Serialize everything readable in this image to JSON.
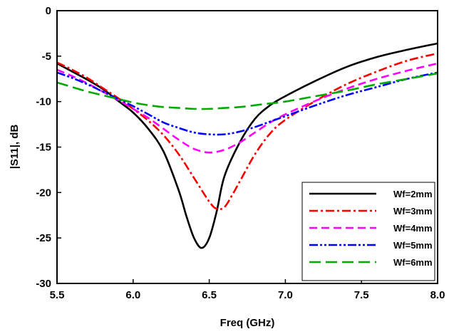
{
  "chart_data": {
    "type": "line",
    "title": "",
    "xlabel": "Freq (GHz)",
    "ylabel": "|S11|, dB",
    "xlim": [
      5.5,
      8.0
    ],
    "ylim": [
      -30,
      0
    ],
    "xticks": [
      5.5,
      6.0,
      6.5,
      7.0,
      7.5,
      8.0
    ],
    "xtick_labels": [
      "5.5",
      "6.0",
      "6.5",
      "7.0",
      "7.5",
      "8.0"
    ],
    "yticks": [
      0,
      -5,
      -10,
      -15,
      -20,
      -25,
      -30
    ],
    "ytick_labels": [
      "0",
      "-5",
      "-10",
      "-15",
      "-20",
      "-25",
      "-30"
    ],
    "grid": false,
    "legend_position": "bottom-right",
    "series": [
      {
        "name": "Wf=2mm",
        "color": "#000000",
        "dash": "solid",
        "x": [
          5.5,
          5.6,
          5.7,
          5.8,
          5.9,
          6.0,
          6.1,
          6.2,
          6.3,
          6.35,
          6.4,
          6.45,
          6.5,
          6.55,
          6.6,
          6.7,
          6.8,
          6.9,
          7.0,
          7.2,
          7.4,
          7.6,
          7.8,
          8.0
        ],
        "y": [
          -5.8,
          -6.7,
          -7.6,
          -8.6,
          -9.9,
          -11.2,
          -13.0,
          -15.5,
          -19.8,
          -22.6,
          -25.0,
          -26.1,
          -25.0,
          -22.0,
          -18.2,
          -14.5,
          -11.9,
          -10.4,
          -9.4,
          -7.7,
          -6.2,
          -5.1,
          -4.3,
          -3.6
        ]
      },
      {
        "name": "Wf=3mm",
        "color": "#ff0000",
        "dash": "dashdot",
        "x": [
          5.5,
          5.6,
          5.7,
          5.8,
          5.9,
          6.0,
          6.1,
          6.2,
          6.3,
          6.4,
          6.5,
          6.55,
          6.6,
          6.65,
          6.7,
          6.8,
          6.9,
          7.0,
          7.2,
          7.4,
          7.6,
          7.8,
          8.0
        ],
        "y": [
          -5.7,
          -6.5,
          -7.4,
          -8.5,
          -9.6,
          -10.8,
          -12.1,
          -13.7,
          -15.8,
          -18.4,
          -21.0,
          -21.8,
          -21.6,
          -20.3,
          -18.8,
          -15.8,
          -13.5,
          -12.0,
          -9.9,
          -8.1,
          -6.7,
          -5.5,
          -4.7
        ]
      },
      {
        "name": "Wf=4mm",
        "color": "#ff00ff",
        "dash": "dash",
        "x": [
          5.5,
          5.6,
          5.7,
          5.8,
          5.9,
          6.0,
          6.1,
          6.2,
          6.3,
          6.4,
          6.5,
          6.6,
          6.7,
          6.8,
          6.9,
          7.0,
          7.2,
          7.4,
          7.6,
          7.8,
          8.0
        ],
        "y": [
          -6.5,
          -7.2,
          -8.0,
          -8.9,
          -9.8,
          -10.8,
          -11.8,
          -13.0,
          -14.2,
          -15.2,
          -15.6,
          -15.3,
          -14.5,
          -13.4,
          -12.3,
          -11.4,
          -9.9,
          -8.6,
          -7.5,
          -6.6,
          -5.8
        ]
      },
      {
        "name": "Wf=5mm",
        "color": "#0000ff",
        "dash": "dashdotdot",
        "x": [
          5.5,
          5.6,
          5.7,
          5.8,
          5.9,
          6.0,
          6.1,
          6.2,
          6.3,
          6.4,
          6.5,
          6.6,
          6.7,
          6.8,
          6.9,
          7.0,
          7.2,
          7.4,
          7.6,
          7.8,
          8.0
        ],
        "y": [
          -6.8,
          -7.4,
          -8.1,
          -8.9,
          -9.7,
          -10.5,
          -11.4,
          -12.3,
          -12.9,
          -13.4,
          -13.6,
          -13.6,
          -13.3,
          -12.8,
          -12.2,
          -11.6,
          -10.4,
          -9.3,
          -8.4,
          -7.5,
          -6.8
        ]
      },
      {
        "name": "Wf=6mm",
        "color": "#00aa00",
        "dash": "longdash",
        "x": [
          5.5,
          5.6,
          5.7,
          5.8,
          5.9,
          6.0,
          6.1,
          6.2,
          6.3,
          6.4,
          6.5,
          6.6,
          6.7,
          6.8,
          6.9,
          7.0,
          7.2,
          7.4,
          7.6,
          7.8,
          8.0
        ],
        "y": [
          -7.9,
          -8.4,
          -8.9,
          -9.3,
          -9.7,
          -10.1,
          -10.4,
          -10.6,
          -10.7,
          -10.8,
          -10.8,
          -10.7,
          -10.6,
          -10.4,
          -10.2,
          -10.0,
          -9.4,
          -8.8,
          -8.1,
          -7.5,
          -6.9
        ]
      }
    ]
  }
}
